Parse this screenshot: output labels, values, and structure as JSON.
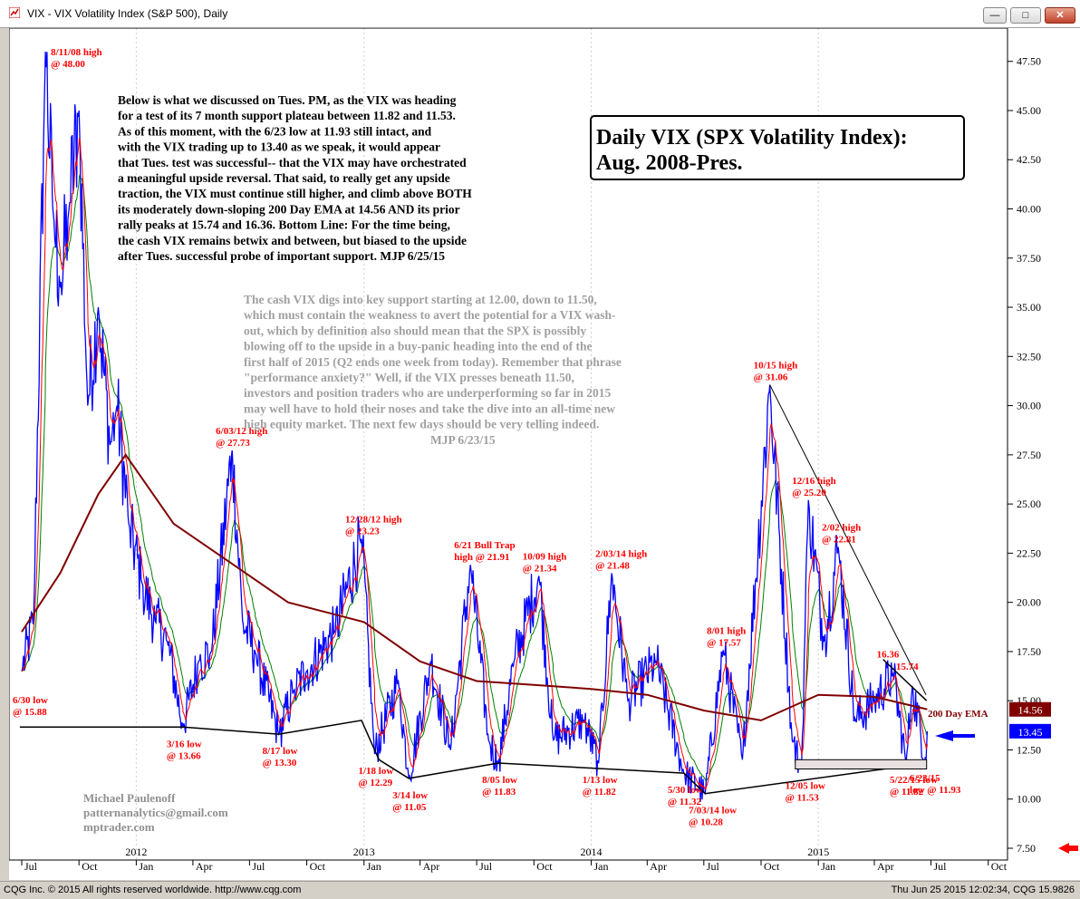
{
  "window": {
    "title": "VIX - VIX Volatility Index (S&P 500), Daily"
  },
  "status": {
    "copyright": "CQG Inc. © 2015 All rights reserved worldwide. http://www.cqg.com",
    "timestamp": "Thu Jun 25 2015 12:02:34, CQG 15.9826"
  },
  "chart_text": {
    "headline_line1": "Daily VIX (SPX Volatility Index):",
    "headline_line2": "Aug. 2008-Pres.",
    "comment_black": [
      "Below is what we discussed on Tues. PM, as the VIX was heading",
      "for a test of its 7 month support plateau between 11.82 and 11.53.",
      "As of this moment, with the 6/23 low at 11.93 still intact, and",
      "with the VIX trading up to 13.40 as we speak, it would appear",
      "that Tues. test was successful-- that the VIX may have orchestrated",
      "a meaningful upside reversal. That said, to really get any upside",
      "traction, the VIX must continue still higher, and climb above BOTH",
      "its moderately down-sloping 200 Day EMA at 14.56 AND its prior",
      "rally peaks at 15.74 and 16.36. Bottom Line: For the time being,",
      "the cash VIX remains betwix and between, but biased to the upside",
      "after Tues. successful probe of important support. MJP 6/25/15"
    ],
    "comment_grey": [
      "The cash VIX digs into key support starting at 12.00, down to 11.50,",
      "which must contain the weakness to avert the potential for a VIX wash-",
      "out, which by definition also should mean that the SPX is possibly",
      "blowing off to the upside in a buy-panic heading into the end of the",
      "first half of 2015 (Q2 ends one week from today). Remember that phrase",
      "\"performance anxiety?\" Well, if the VIX presses beneath 11.50,",
      "investors and position traders who are underperforming so far in 2015",
      "may well have to hold their noses and take the dive into an all-time new",
      "high equity market. The next few days should be very telling indeed.",
      "MJP  6/23/15"
    ],
    "author": [
      "Michael Paulenoff",
      "patternanalytics@gmail.com",
      "mptrader.com"
    ],
    "ema_label": "200 Day EMA"
  },
  "colors": {
    "price": "#0000ff",
    "ema200": "#800000",
    "ema_fast_red": "#ff0000",
    "ema_mid_green": "#008000",
    "annotation": "#ff0000",
    "trendline": "#000000",
    "comment_grey": "#a0a0a0"
  },
  "chart_data": {
    "type": "line",
    "title": "VIX - VIX Volatility Index (S&P 500), Daily",
    "x_axis_months": [
      "Jul",
      "Oct",
      "Jan",
      "Apr",
      "Jul",
      "Oct",
      "Jan",
      "Apr",
      "Jul",
      "Oct",
      "Jan",
      "Apr",
      "Jul",
      "Oct",
      "Jan",
      "Apr",
      "Jul",
      "Oct"
    ],
    "x_axis_years": [
      "2012",
      "2013",
      "2014",
      "2015"
    ],
    "y_ticks": [
      "47.50",
      "45.00",
      "42.50",
      "40.00",
      "37.50",
      "35.00",
      "32.50",
      "30.00",
      "27.50",
      "25.00",
      "22.50",
      "20.00",
      "17.50",
      "15.00",
      "12.50",
      "10.00",
      "7.50"
    ],
    "ylim": [
      7.5,
      48.5
    ],
    "price_tags": [
      {
        "label": "14.56",
        "value": 14.56,
        "color": "#800000"
      },
      {
        "label": "13.45",
        "value": 13.45,
        "color": "#0000ff"
      }
    ],
    "annotations": [
      {
        "date": "2011-08-08",
        "value": 48.0,
        "line1": "8/11/08 high",
        "line2": "@ 48.00",
        "anchor": "right"
      },
      {
        "date": "2011-06-30",
        "value": 15.88,
        "line1": "6/30 low",
        "line2": "@ 15.88",
        "anchor": "below"
      },
      {
        "date": "2012-03-16",
        "value": 13.66,
        "line1": "3/16 low",
        "line2": "@ 13.66",
        "anchor": "below"
      },
      {
        "date": "2012-06-03",
        "value": 27.73,
        "line1": "6/03/12 high",
        "line2": "@ 27.73",
        "anchor": "above"
      },
      {
        "date": "2012-08-17",
        "value": 13.3,
        "line1": "8/17 low",
        "line2": "@ 13.30",
        "anchor": "below"
      },
      {
        "date": "2012-12-28",
        "value": 23.23,
        "line1": "12/28/12 high",
        "line2": "@ 23.23",
        "anchor": "above"
      },
      {
        "date": "2013-01-18",
        "value": 12.29,
        "line1": "1/18 low",
        "line2": "@ 12.29",
        "anchor": "below"
      },
      {
        "date": "2013-03-14",
        "value": 11.05,
        "line1": "3/14 low",
        "line2": "@ 11.05",
        "anchor": "below"
      },
      {
        "date": "2013-06-21",
        "value": 21.91,
        "line1": "6/21 Bull Trap",
        "line2": "high @ 21.91",
        "anchor": "above"
      },
      {
        "date": "2013-08-05",
        "value": 11.83,
        "line1": "8/05 low",
        "line2": "@ 11.83",
        "anchor": "below"
      },
      {
        "date": "2013-10-09",
        "value": 21.34,
        "line1": "10/09 high",
        "line2": "@ 21.34",
        "anchor": "above"
      },
      {
        "date": "2014-01-13",
        "value": 11.82,
        "line1": "1/13 low",
        "line2": "@ 11.82",
        "anchor": "below"
      },
      {
        "date": "2014-02-03",
        "value": 21.48,
        "line1": "2/03/14 high",
        "line2": "@ 21.48",
        "anchor": "above"
      },
      {
        "date": "2014-05-30",
        "value": 11.32,
        "line1": "5/30 low",
        "line2": "@ 11.32",
        "anchor": "below"
      },
      {
        "date": "2014-07-03",
        "value": 10.28,
        "line1": "7/03/14 low",
        "line2": "@ 10.28",
        "anchor": "below"
      },
      {
        "date": "2014-08-01",
        "value": 17.57,
        "line1": "8/01 high",
        "line2": "@ 17.57",
        "anchor": "above"
      },
      {
        "date": "2014-10-15",
        "value": 31.06,
        "line1": "10/15 high",
        "line2": "@ 31.06",
        "anchor": "above"
      },
      {
        "date": "2014-12-05",
        "value": 11.53,
        "line1": "12/05 low",
        "line2": "@ 11.53",
        "anchor": "below"
      },
      {
        "date": "2014-12-16",
        "value": 25.2,
        "line1": "12/16 high",
        "line2": "@ 25.20",
        "anchor": "above"
      },
      {
        "date": "2015-02-02",
        "value": 22.81,
        "line1": "2/02 high",
        "line2": "@ 22.81",
        "anchor": "above"
      },
      {
        "date": "2015-05-22",
        "value": 11.82,
        "line1": "5/22/15 low",
        "line2": "@ 11.82",
        "anchor": "below"
      },
      {
        "date": "2015-06-23",
        "value": 11.93,
        "line1": "6/23/15",
        "line2": "low @ 11.93",
        "anchor": "below"
      },
      {
        "date": "2015-05-01",
        "value": 16.36,
        "line1": "16.36",
        "line2": "",
        "anchor": "above"
      },
      {
        "date": "2015-06-01",
        "value": 15.74,
        "line1": "15.74",
        "line2": "",
        "anchor": "above"
      }
    ],
    "series": [
      {
        "points": [
          [
            "2011-07-01",
            16.5
          ],
          [
            "2011-07-20",
            19.0
          ],
          [
            "2011-08-08",
            48.0
          ],
          [
            "2011-08-20",
            40.0
          ],
          [
            "2011-09-01",
            36.0
          ],
          [
            "2011-09-15",
            40.0
          ],
          [
            "2011-10-01",
            45.0
          ],
          [
            "2011-10-15",
            30.0
          ],
          [
            "2011-11-01",
            35.0
          ],
          [
            "2011-11-20",
            28.0
          ],
          [
            "2011-12-01",
            30.0
          ],
          [
            "2011-12-20",
            24.0
          ],
          [
            "2012-01-10",
            21.0
          ],
          [
            "2012-02-01",
            19.0
          ],
          [
            "2012-02-20",
            18.0
          ],
          [
            "2012-03-16",
            13.66
          ],
          [
            "2012-04-10",
            17.0
          ],
          [
            "2012-05-01",
            17.5
          ],
          [
            "2012-06-03",
            27.73
          ],
          [
            "2012-06-20",
            19.0
          ],
          [
            "2012-07-10",
            17.5
          ],
          [
            "2012-08-17",
            13.3
          ],
          [
            "2012-09-10",
            15.5
          ],
          [
            "2012-10-01",
            16.5
          ],
          [
            "2012-11-15",
            18.5
          ],
          [
            "2012-12-28",
            23.23
          ],
          [
            "2013-01-18",
            12.29
          ],
          [
            "2013-02-25",
            16.0
          ],
          [
            "2013-03-14",
            11.05
          ],
          [
            "2013-04-18",
            17.0
          ],
          [
            "2013-05-20",
            12.5
          ],
          [
            "2013-06-21",
            21.91
          ],
          [
            "2013-07-20",
            13.0
          ],
          [
            "2013-08-05",
            11.83
          ],
          [
            "2013-08-30",
            17.0
          ],
          [
            "2013-10-09",
            21.34
          ],
          [
            "2013-11-01",
            13.0
          ],
          [
            "2013-12-20",
            14.0
          ],
          [
            "2014-01-13",
            11.82
          ],
          [
            "2014-02-03",
            21.48
          ],
          [
            "2014-03-01",
            15.0
          ],
          [
            "2014-04-15",
            17.0
          ],
          [
            "2014-05-30",
            11.32
          ],
          [
            "2014-07-03",
            10.28
          ],
          [
            "2014-08-01",
            17.57
          ],
          [
            "2014-09-01",
            12.0
          ],
          [
            "2014-10-15",
            31.06
          ],
          [
            "2014-11-20",
            13.0
          ],
          [
            "2014-12-05",
            11.53
          ],
          [
            "2014-12-16",
            25.2
          ],
          [
            "2015-01-10",
            18.0
          ],
          [
            "2015-02-02",
            22.81
          ],
          [
            "2015-03-01",
            14.0
          ],
          [
            "2015-04-01",
            15.0
          ],
          [
            "2015-05-01",
            16.36
          ],
          [
            "2015-05-22",
            11.82
          ],
          [
            "2015-06-01",
            15.74
          ],
          [
            "2015-06-23",
            11.93
          ],
          [
            "2015-06-25",
            13.45
          ]
        ]
      },
      {
        "name": "200 Day EMA",
        "points": [
          [
            "2011-07-01",
            18.5
          ],
          [
            "2011-09-01",
            21.5
          ],
          [
            "2011-11-01",
            25.5
          ],
          [
            "2011-12-15",
            27.5
          ],
          [
            "2012-03-01",
            24.0
          ],
          [
            "2012-06-01",
            22.0
          ],
          [
            "2012-09-01",
            20.0
          ],
          [
            "2013-01-01",
            19.0
          ],
          [
            "2013-04-01",
            17.0
          ],
          [
            "2013-07-01",
            16.0
          ],
          [
            "2013-10-01",
            15.8
          ],
          [
            "2014-01-01",
            15.6
          ],
          [
            "2014-04-01",
            15.3
          ],
          [
            "2014-07-01",
            14.5
          ],
          [
            "2014-10-01",
            14.0
          ],
          [
            "2015-01-01",
            15.3
          ],
          [
            "2015-04-01",
            15.2
          ],
          [
            "2015-06-25",
            14.56
          ]
        ]
      }
    ]
  }
}
